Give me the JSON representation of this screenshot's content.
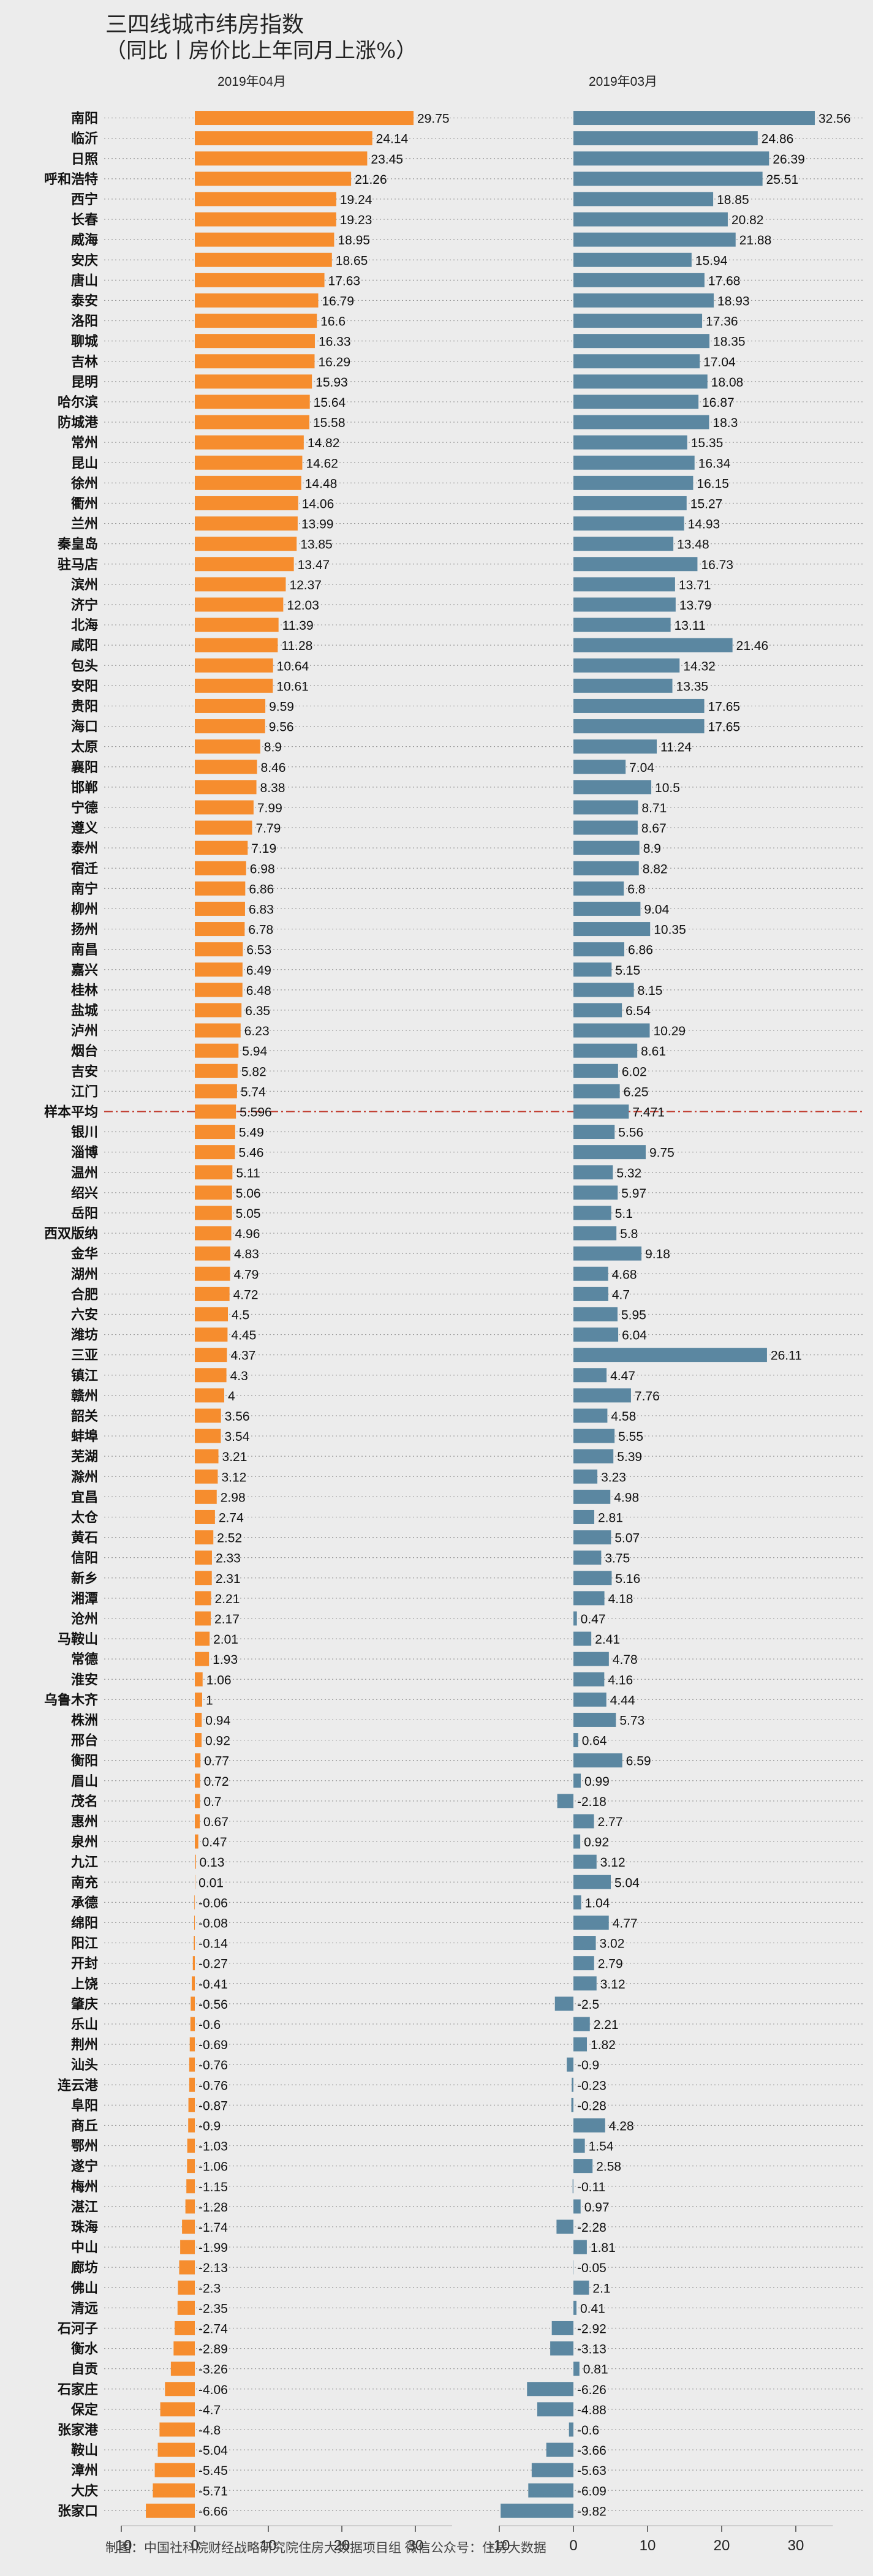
{
  "chart_data": {
    "type": "bar",
    "title": "三四线城市纬房指数",
    "subtitle": "（同比丨房价比上年同月上涨%）",
    "colors": {
      "apr": "#f68d2e",
      "mar": "#5b87a1",
      "avg_line": "#c0392b",
      "background": "#ececec"
    },
    "xlim": [
      -10,
      35
    ],
    "xticks": [
      -10,
      0,
      10,
      20,
      30
    ],
    "grid": false,
    "legend": "none",
    "average_label": "样本平均",
    "footer": "制图：中国社科院财经战略研究院住房大数据项目组        微信公众号：住房大数据",
    "categories": [
      "南阳",
      "临沂",
      "日照",
      "呼和浩特",
      "西宁",
      "长春",
      "威海",
      "安庆",
      "唐山",
      "泰安",
      "洛阳",
      "聊城",
      "吉林",
      "昆明",
      "哈尔滨",
      "防城港",
      "常州",
      "昆山",
      "徐州",
      "衢州",
      "兰州",
      "秦皇岛",
      "驻马店",
      "滨州",
      "济宁",
      "北海",
      "咸阳",
      "包头",
      "安阳",
      "贵阳",
      "海口",
      "太原",
      "襄阳",
      "邯郸",
      "宁德",
      "遵义",
      "泰州",
      "宿迁",
      "南宁",
      "柳州",
      "扬州",
      "南昌",
      "嘉兴",
      "桂林",
      "盐城",
      "泸州",
      "烟台",
      "吉安",
      "江门",
      "样本平均",
      "银川",
      "淄博",
      "温州",
      "绍兴",
      "岳阳",
      "西双版纳",
      "金华",
      "湖州",
      "合肥",
      "六安",
      "潍坊",
      "三亚",
      "镇江",
      "赣州",
      "韶关",
      "蚌埠",
      "芜湖",
      "滁州",
      "宜昌",
      "太仓",
      "黄石",
      "信阳",
      "新乡",
      "湘潭",
      "沧州",
      "马鞍山",
      "常德",
      "淮安",
      "乌鲁木齐",
      "株洲",
      "邢台",
      "衡阳",
      "眉山",
      "茂名",
      "惠州",
      "泉州",
      "九江",
      "南充",
      "承德",
      "绵阳",
      "阳江",
      "开封",
      "上饶",
      "肇庆",
      "乐山",
      "荆州",
      "汕头",
      "连云港",
      "阜阳",
      "商丘",
      "鄂州",
      "遂宁",
      "梅州",
      "湛江",
      "珠海",
      "中山",
      "廊坊",
      "佛山",
      "清远",
      "石河子",
      "衡水",
      "自贡",
      "石家庄",
      "保定",
      "张家港",
      "鞍山",
      "漳州",
      "大庆",
      "张家口"
    ],
    "series": [
      {
        "name": "2019年04月",
        "values": [
          29.75,
          24.14,
          23.45,
          21.26,
          19.24,
          19.23,
          18.95,
          18.65,
          17.63,
          16.79,
          16.6,
          16.33,
          16.29,
          15.93,
          15.64,
          15.58,
          14.82,
          14.62,
          14.48,
          14.06,
          13.99,
          13.85,
          13.47,
          12.37,
          12.03,
          11.39,
          11.28,
          10.64,
          10.61,
          9.59,
          9.56,
          8.9,
          8.46,
          8.38,
          7.99,
          7.79,
          7.19,
          6.98,
          6.86,
          6.83,
          6.78,
          6.53,
          6.49,
          6.48,
          6.35,
          6.23,
          5.94,
          5.82,
          5.74,
          5.596,
          5.49,
          5.46,
          5.11,
          5.06,
          5.05,
          4.96,
          4.83,
          4.79,
          4.72,
          4.5,
          4.45,
          4.37,
          4.3,
          4,
          3.56,
          3.54,
          3.21,
          3.12,
          2.98,
          2.74,
          2.52,
          2.33,
          2.31,
          2.21,
          2.17,
          2.01,
          1.93,
          1.06,
          1,
          0.94,
          0.92,
          0.77,
          0.72,
          0.7,
          0.67,
          0.47,
          0.13,
          0.01,
          -0.06,
          -0.08,
          -0.14,
          -0.27,
          -0.41,
          -0.56,
          -0.6,
          -0.69,
          -0.76,
          -0.76,
          -0.87,
          -0.9,
          -1.03,
          -1.06,
          -1.15,
          -1.28,
          -1.74,
          -1.99,
          -2.13,
          -2.3,
          -2.35,
          -2.74,
          -2.89,
          -3.26,
          -4.06,
          -4.7,
          -4.8,
          -5.04,
          -5.45,
          -5.71,
          -6.66
        ]
      },
      {
        "name": "2019年03月",
        "values": [
          32.56,
          24.86,
          26.39,
          25.51,
          18.85,
          20.82,
          21.88,
          15.94,
          17.68,
          18.93,
          17.36,
          18.35,
          17.04,
          18.08,
          16.87,
          18.3,
          15.35,
          16.34,
          16.15,
          15.27,
          14.93,
          13.48,
          16.73,
          13.71,
          13.79,
          13.11,
          21.46,
          14.32,
          13.35,
          17.65,
          17.65,
          11.24,
          7.04,
          10.5,
          8.71,
          8.67,
          8.9,
          8.82,
          6.8,
          9.04,
          10.35,
          6.86,
          5.15,
          8.15,
          6.54,
          10.29,
          8.61,
          6.02,
          6.25,
          7.471,
          5.56,
          9.75,
          5.32,
          5.97,
          5.1,
          5.8,
          9.18,
          4.68,
          4.7,
          5.95,
          6.04,
          26.11,
          4.47,
          7.76,
          4.58,
          5.55,
          5.39,
          3.23,
          4.98,
          2.81,
          5.07,
          3.75,
          5.16,
          4.18,
          0.47,
          2.41,
          4.78,
          4.16,
          4.44,
          5.73,
          0.64,
          6.59,
          0.99,
          -2.18,
          2.77,
          0.92,
          3.12,
          5.04,
          1.04,
          4.77,
          3.02,
          2.79,
          3.12,
          -2.5,
          2.21,
          1.82,
          -0.9,
          -0.23,
          -0.28,
          4.28,
          1.54,
          2.58,
          -0.11,
          0.97,
          -2.28,
          1.81,
          -0.05,
          2.1,
          0.41,
          -2.92,
          -3.13,
          0.81,
          -6.26,
          -4.88,
          -0.6,
          -3.66,
          -5.63,
          -6.09,
          -9.82
        ]
      }
    ]
  }
}
